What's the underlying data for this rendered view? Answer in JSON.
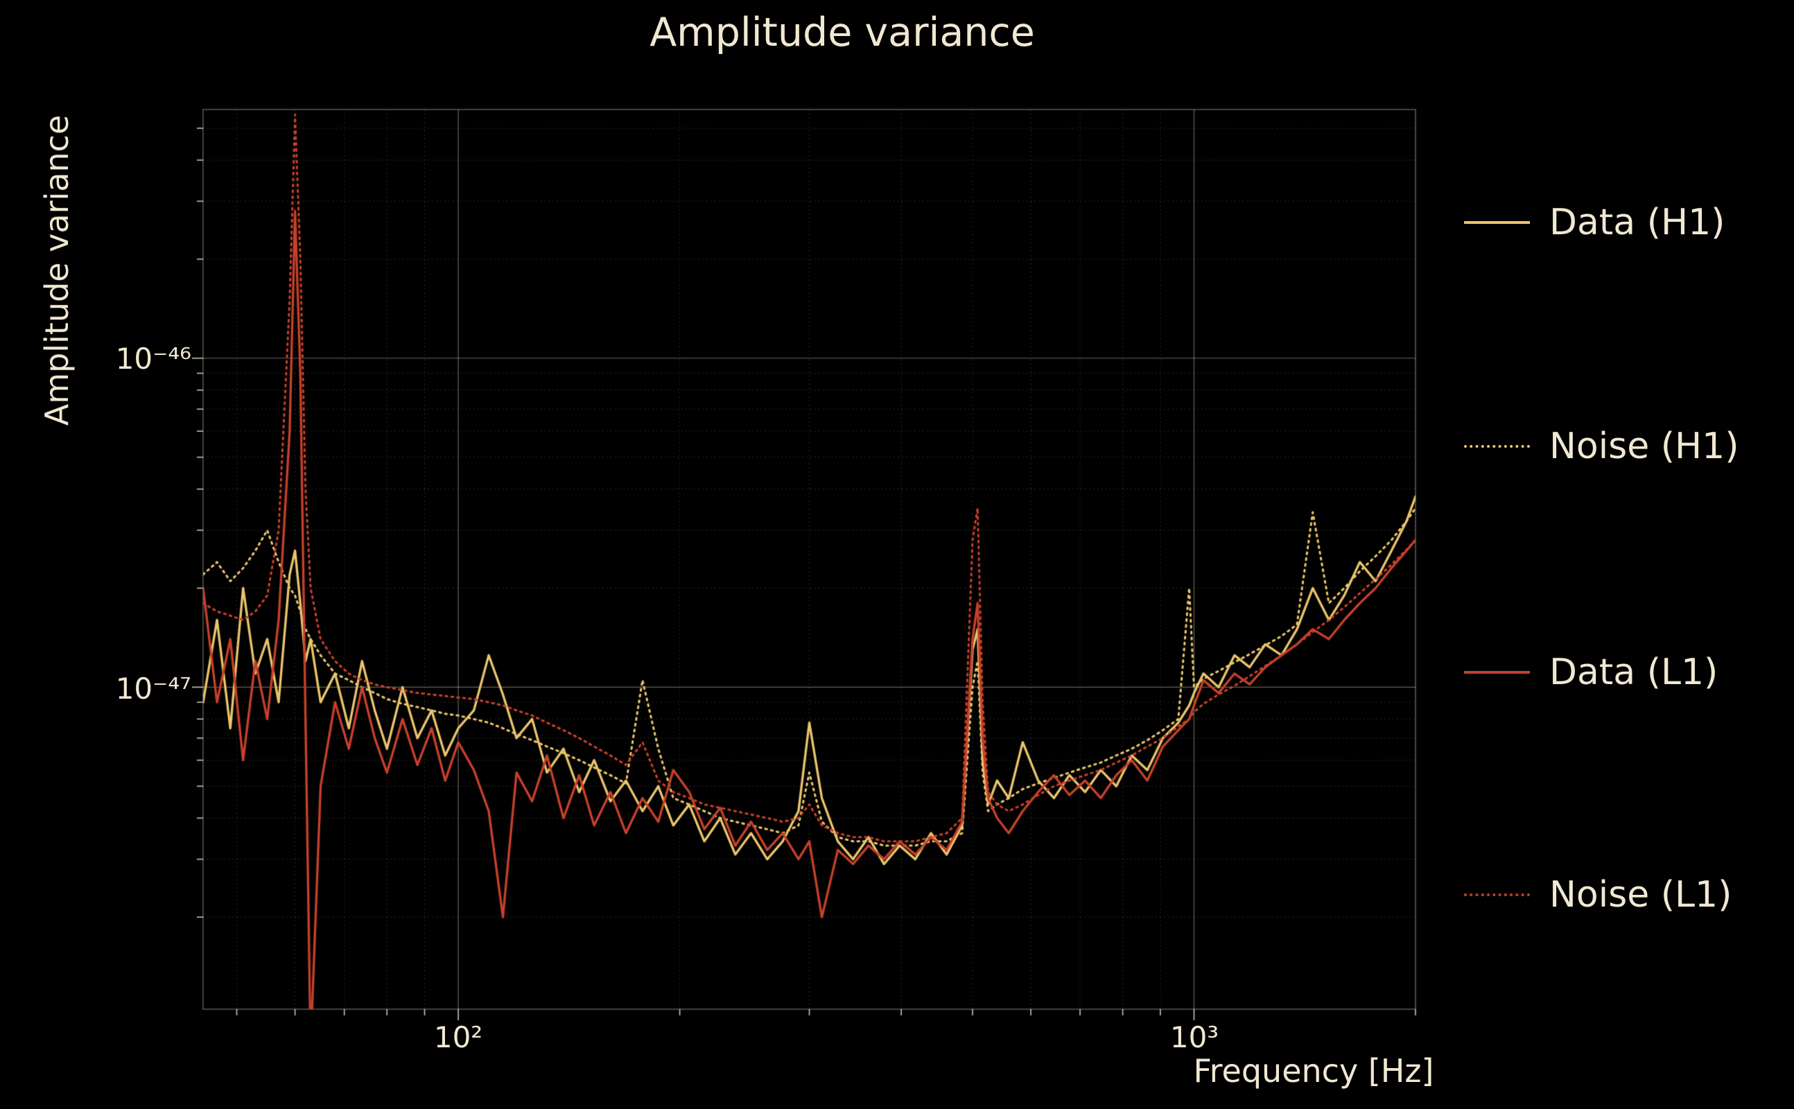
{
  "title": "Amplitude variance",
  "axes": {
    "xlabel": "Frequency [Hz]",
    "ylabel": "Amplitude variance",
    "x_ticks": [
      {
        "label": "10²",
        "value": 100
      },
      {
        "label": "10³",
        "value": 1000
      }
    ],
    "y_ticks": [
      {
        "label": "10⁻⁴⁶",
        "value": 1e-46
      },
      {
        "label": "10⁻⁴⁷",
        "value": 1e-47
      }
    ]
  },
  "colors": {
    "background": "#000000",
    "text": "#f1e8d2",
    "grid": "#e8decc",
    "h1": "#e9c46a",
    "l1": "#c6402b"
  },
  "chart_data": {
    "type": "line",
    "title": "Amplitude variance",
    "xlabel": "Frequency [Hz]",
    "ylabel": "Amplitude variance",
    "xscale": "log",
    "yscale": "log",
    "xlim": [
      45,
      2000
    ],
    "ylim": [
      1.05e-48,
      5.7e-46
    ],
    "grid": true,
    "legend_position": "right-outside",
    "value_scale": 1e-48,
    "frequencies": [
      45,
      47,
      49,
      51,
      53,
      55,
      57,
      59,
      60,
      61,
      62,
      63,
      65,
      68,
      71,
      74,
      77,
      80,
      84,
      88,
      92,
      96,
      100,
      105,
      110,
      115,
      120,
      126,
      132,
      139,
      146,
      153,
      161,
      169,
      178,
      187,
      196,
      206,
      216,
      227,
      238,
      250,
      263,
      276,
      290,
      300,
      312,
      328,
      344,
      361,
      379,
      398,
      418,
      439,
      461,
      484,
      500,
      508,
      516,
      525,
      540,
      560,
      585,
      614,
      645,
      677,
      711,
      747,
      784,
      823,
      864,
      907,
      952,
      985,
      1000,
      1030,
      1080,
      1135,
      1190,
      1250,
      1315,
      1380,
      1450,
      1525,
      1600,
      1680,
      1765,
      1855,
      1945,
      2000
    ],
    "series": [
      {
        "name": "Data (H1)",
        "color": "#e9c46a",
        "line": "solid",
        "values": [
          9,
          16,
          7.5,
          20,
          11,
          14,
          9,
          22,
          26,
          18,
          12,
          14,
          9,
          11,
          7.5,
          12,
          8.5,
          6.5,
          10,
          7,
          8.5,
          6.2,
          7.5,
          8.5,
          12.5,
          9.5,
          7,
          8,
          5.5,
          6.5,
          4.8,
          6,
          4.5,
          5.2,
          4.2,
          5,
          3.8,
          4.4,
          3.4,
          4,
          3.1,
          3.6,
          3,
          3.4,
          4.2,
          7.8,
          4.6,
          3.4,
          3,
          3.5,
          2.9,
          3.3,
          3,
          3.6,
          3.1,
          3.8,
          13,
          15,
          6,
          4.4,
          5.2,
          4.6,
          6.8,
          5.2,
          4.6,
          5.4,
          4.8,
          5.6,
          5,
          6.2,
          5.6,
          7,
          7.8,
          8.8,
          9.6,
          11,
          10,
          12.5,
          11.5,
          13.5,
          12.5,
          15,
          20,
          16,
          19,
          24,
          21,
          26,
          32,
          38
        ]
      },
      {
        "name": "Noise (H1)",
        "color": "#e9c46a",
        "line": "dotted",
        "values": [
          22,
          24,
          21,
          23,
          26,
          30,
          24,
          20,
          19,
          17,
          15,
          14,
          12.5,
          11,
          10.5,
          10,
          9.6,
          9.2,
          8.9,
          8.7,
          8.5,
          8.3,
          8.2,
          8,
          7.8,
          7.5,
          7.2,
          6.9,
          6.6,
          6.3,
          6,
          5.7,
          5.4,
          5.1,
          10.5,
          6.5,
          4.6,
          4.4,
          4.2,
          4,
          3.9,
          3.8,
          3.7,
          3.6,
          3.8,
          5.5,
          3.9,
          3.5,
          3.4,
          3.4,
          3.3,
          3.3,
          3.3,
          3.4,
          3.4,
          3.6,
          10,
          12,
          5.5,
          4.2,
          4.4,
          4.6,
          4.9,
          5.1,
          5.3,
          5.5,
          5.7,
          5.9,
          6.2,
          6.5,
          6.9,
          7.4,
          8,
          20,
          10,
          10.6,
          11.2,
          11.9,
          12.6,
          13.4,
          14.3,
          15.5,
          34,
          18,
          20,
          22.5,
          25,
          28,
          32,
          35
        ]
      },
      {
        "name": "Data (L1)",
        "color": "#c6402b",
        "line": "solid",
        "values": [
          20,
          9,
          14,
          6,
          12,
          8,
          16,
          60,
          280,
          90,
          8,
          0.8,
          5,
          9,
          6.5,
          10,
          7,
          5.5,
          8,
          5.8,
          7.5,
          5.2,
          6.8,
          5.6,
          4.2,
          2,
          5.5,
          4.5,
          6.2,
          4,
          5.4,
          3.8,
          4.8,
          3.6,
          4.6,
          3.9,
          5.6,
          4.8,
          3.7,
          4.3,
          3.3,
          3.9,
          3.2,
          3.6,
          3,
          3.4,
          2,
          3.2,
          2.9,
          3.3,
          3,
          3.4,
          3.1,
          3.5,
          3.2,
          3.9,
          14,
          18,
          7,
          4.6,
          4,
          3.6,
          4.2,
          4.8,
          5.4,
          4.7,
          5.2,
          4.6,
          5.4,
          6,
          5.2,
          6.6,
          7.4,
          8,
          8.8,
          10.5,
          9.6,
          11,
          10.2,
          11.5,
          12.5,
          13.5,
          15,
          14,
          16,
          18,
          20,
          23,
          26,
          28
        ]
      },
      {
        "name": "Noise (L1)",
        "color": "#c6402b",
        "line": "dotted",
        "values": [
          18,
          17,
          16.5,
          16,
          17,
          19,
          30,
          150,
          550,
          200,
          40,
          20,
          14,
          12,
          11,
          10.5,
          10.2,
          10,
          9.8,
          9.6,
          9.5,
          9.4,
          9.3,
          9.2,
          9,
          8.8,
          8.5,
          8.2,
          7.8,
          7.4,
          7,
          6.6,
          6.2,
          5.8,
          6.8,
          5.2,
          4.8,
          4.6,
          4.4,
          4.3,
          4.2,
          4.1,
          4,
          3.9,
          4,
          4.4,
          3.8,
          3.6,
          3.5,
          3.5,
          3.4,
          3.4,
          3.4,
          3.5,
          3.6,
          4,
          28,
          35,
          9,
          4.8,
          4.4,
          4.2,
          4.4,
          4.7,
          5,
          5.2,
          5.4,
          5.6,
          5.9,
          6.2,
          6.6,
          7,
          7.6,
          8,
          8.4,
          8.9,
          9.5,
          10.1,
          10.8,
          11.6,
          12.5,
          13.5,
          14.7,
          16,
          17.5,
          19.3,
          21.3,
          23.6,
          26.2,
          28
        ]
      }
    ]
  }
}
